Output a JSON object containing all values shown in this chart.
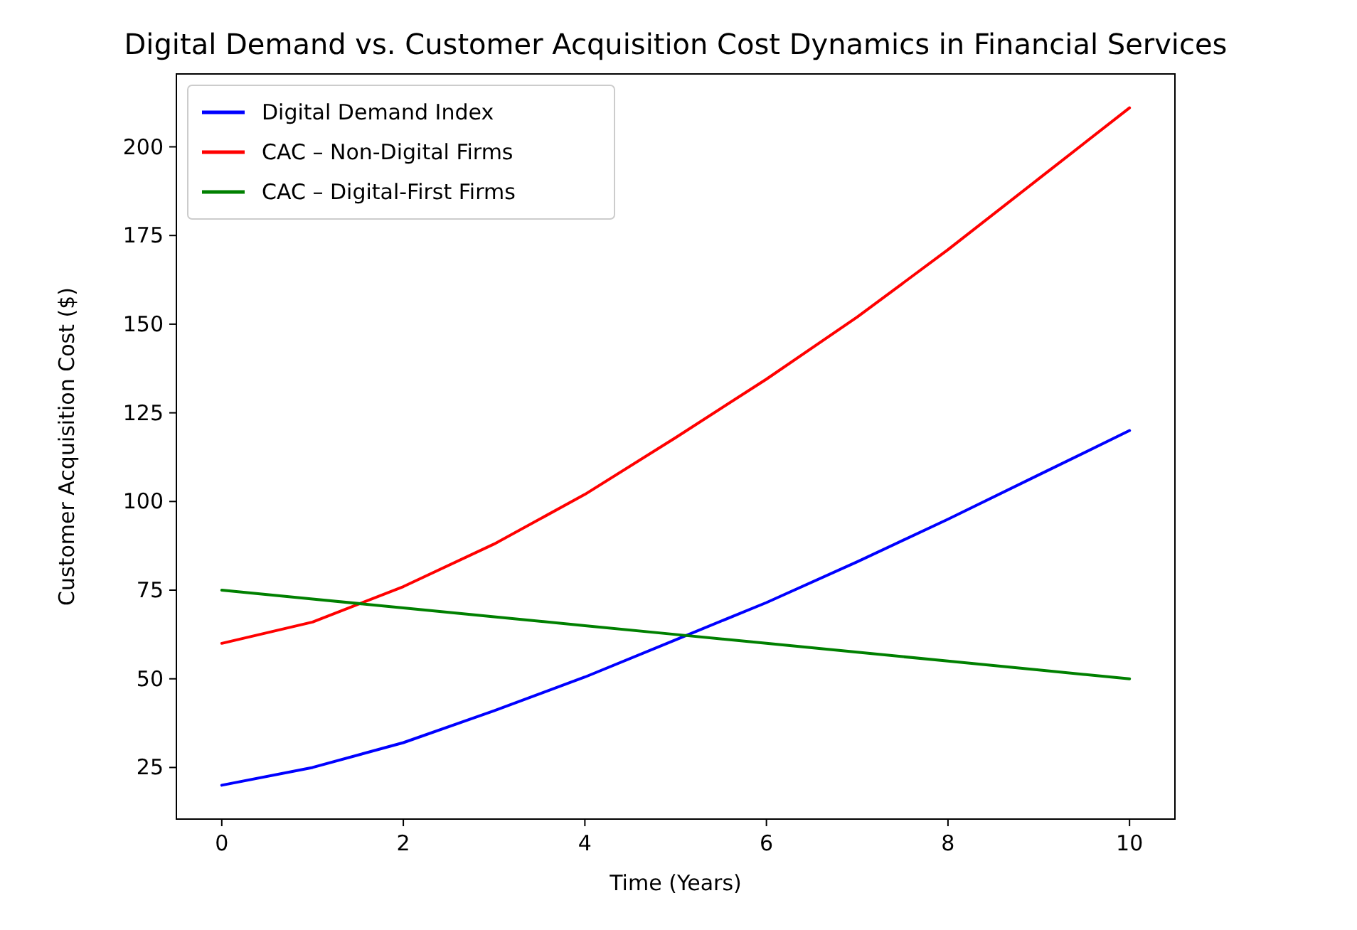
{
  "chart_data": {
    "type": "line",
    "title": "Digital Demand vs. Customer Acquisition Cost Dynamics in Financial Services",
    "xlabel": "Time (Years)",
    "ylabel": "Customer Acquisition Cost ($)",
    "x": [
      0,
      1,
      2,
      3,
      4,
      5,
      6,
      7,
      8,
      9,
      10
    ],
    "series": [
      {
        "name": "Digital Demand Index",
        "color": "#0000ff",
        "values": [
          20,
          25,
          32,
          41,
          50.5,
          61,
          71.5,
          83,
          95,
          107.5,
          120
        ]
      },
      {
        "name": "CAC – Non-Digital Firms",
        "color": "#ff0000",
        "values": [
          60,
          66,
          76,
          88,
          102,
          118,
          134.5,
          152,
          171,
          191,
          211
        ]
      },
      {
        "name": "CAC – Digital-First Firms",
        "color": "#008000",
        "values": [
          75,
          72.5,
          70,
          67.5,
          65,
          62.5,
          60,
          57.5,
          55,
          52.5,
          50
        ]
      }
    ],
    "xlim": [
      -0.5,
      10.5
    ],
    "ylim": [
      10.45,
      220.55
    ],
    "xticks": [
      0,
      2,
      4,
      6,
      8,
      10
    ],
    "yticks": [
      25,
      50,
      75,
      100,
      125,
      150,
      175,
      200
    ],
    "grid": false,
    "legend": "top left",
    "marker": "none",
    "line_style": "solid"
  }
}
